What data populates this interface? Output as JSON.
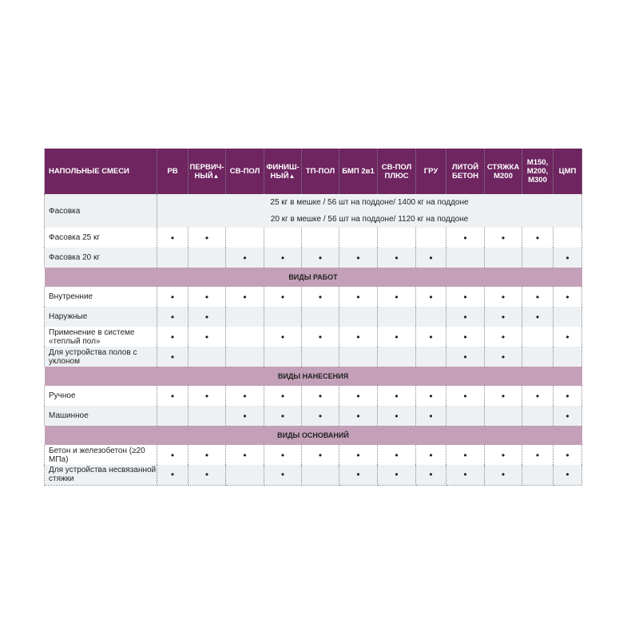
{
  "header": {
    "title": "НАПОЛЬНЫЕ СМЕСИ",
    "columns": [
      {
        "l1": "РВ",
        "l2": ""
      },
      {
        "l1": "ПЕРВИЧ-",
        "l2": "НЫЙ",
        "mark": "▲"
      },
      {
        "l1": "СВ-ПОЛ",
        "l2": ""
      },
      {
        "l1": "ФИНИШ-",
        "l2": "НЫЙ",
        "mark": "▲"
      },
      {
        "l1": "ТП-ПОЛ",
        "l2": ""
      },
      {
        "l1": "БМП 2в1",
        "l2": ""
      },
      {
        "l1": "СВ-ПОЛ",
        "l2": "ПЛЮС"
      },
      {
        "l1": "ГРУ",
        "l2": ""
      },
      {
        "l1": "ЛИТОЙ",
        "l2": "БЕТОН"
      },
      {
        "l1": "СТЯЖКА",
        "l2": "М200"
      },
      {
        "l1": "М150,",
        "l2": "М200,",
        "l3": "М300"
      },
      {
        "l1": "ЦМП",
        "l2": ""
      }
    ]
  },
  "packaging": {
    "label": "Фасовка",
    "line1": "25 кг в мешке / 56 шт на поддоне/ 1400 кг на поддоне",
    "line2": "20 кг в мешке / 56 шт на поддоне/ 1120 кг на поддоне"
  },
  "bullet": "•",
  "rows": [
    {
      "type": "row",
      "label": "Фасовка 25 кг",
      "marks": [
        1,
        1,
        0,
        0,
        0,
        0,
        0,
        0,
        1,
        1,
        1,
        0
      ]
    },
    {
      "type": "row",
      "label": "Фасовка 20 кг",
      "marks": [
        0,
        0,
        1,
        1,
        1,
        1,
        1,
        1,
        0,
        0,
        0,
        1
      ]
    },
    {
      "type": "section",
      "label": "ВИДЫ РАБОТ"
    },
    {
      "type": "row",
      "label": "Внутренние",
      "marks": [
        1,
        1,
        1,
        1,
        1,
        1,
        1,
        1,
        1,
        1,
        1,
        1
      ]
    },
    {
      "type": "row",
      "label": "Наружные",
      "marks": [
        1,
        1,
        0,
        0,
        0,
        0,
        0,
        0,
        1,
        1,
        1,
        0
      ]
    },
    {
      "type": "row",
      "label": "Применение в системе «теплый пол»",
      "marks": [
        1,
        1,
        0,
        1,
        1,
        1,
        1,
        1,
        1,
        1,
        0,
        1
      ]
    },
    {
      "type": "row",
      "label": "Для устройства полов с уклоном",
      "marks": [
        1,
        0,
        0,
        0,
        0,
        0,
        0,
        0,
        1,
        1,
        0,
        0
      ]
    },
    {
      "type": "section",
      "label": "ВИДЫ НАНЕСЕНИЯ"
    },
    {
      "type": "row",
      "label": "Ручное",
      "marks": [
        1,
        1,
        1,
        1,
        1,
        1,
        1,
        1,
        1,
        1,
        1,
        1
      ]
    },
    {
      "type": "row",
      "label": "Машинное",
      "marks": [
        0,
        0,
        1,
        1,
        1,
        1,
        1,
        1,
        0,
        0,
        0,
        1
      ]
    },
    {
      "type": "section",
      "label": "ВИДЫ ОСНОВАНИЙ"
    },
    {
      "type": "row",
      "label": "Бетон и железобетон (≥20 МПа)",
      "marks": [
        1,
        1,
        1,
        1,
        1,
        1,
        1,
        1,
        1,
        1,
        1,
        1
      ]
    },
    {
      "type": "row",
      "label": "Для устройства несвязанной стяжки",
      "marks": [
        1,
        1,
        0,
        1,
        0,
        1,
        1,
        1,
        1,
        1,
        0,
        1
      ]
    }
  ],
  "colors": {
    "header": "#6e2560",
    "section": "#c4a0b8",
    "stripe": "#eef1f4"
  }
}
